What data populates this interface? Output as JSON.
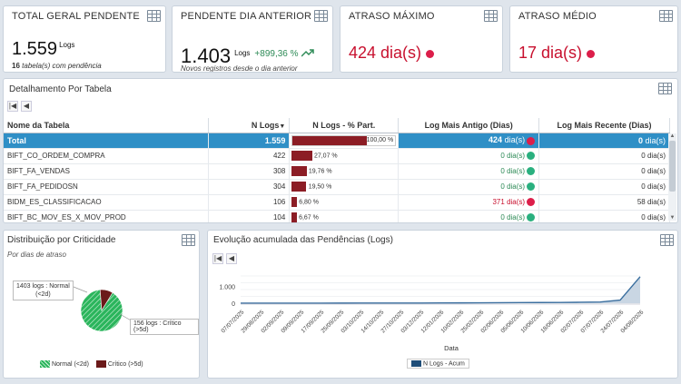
{
  "kpis": {
    "total": {
      "title": "TOTAL GERAL PENDENTE",
      "value": "1.559",
      "unit": "Logs",
      "sub_count": "16",
      "sub_text": "tabela(s) com pendência"
    },
    "prev": {
      "title": "PENDENTE DIA ANTERIOR",
      "value": "1.403",
      "unit": "Logs",
      "delta": "+899,36 %",
      "sub_text": "Novos registros desde o dia anterior"
    },
    "max": {
      "title": "ATRASO MÁXIMO",
      "value": "424 dia(s)"
    },
    "avg": {
      "title": "ATRASO MÉDIO",
      "value": "17 dia(s)"
    }
  },
  "detail": {
    "title": "Detalhamento Por Tabela",
    "columns": [
      "Nome da Tabela",
      "N Logs",
      "N Logs - % Part.",
      "Log Mais Antigo (Dias)",
      "Log Mais Recente (Dias)"
    ],
    "total": {
      "name": "Total",
      "logs": "1.559",
      "pct": "100,00 %",
      "oldest": "424",
      "oldest_unit": "dia(s)",
      "newest": "0",
      "newest_unit": "dia(s)"
    },
    "rows": [
      {
        "name": "BIFT_CO_ORDEM_COMPRA",
        "logs": "422",
        "pct": "27,07 %",
        "pct_val": 27.07,
        "oldest": "0",
        "unit": "dia(s)",
        "oldest_status": "green",
        "newest": "0",
        "newest_unit": "dia(s)"
      },
      {
        "name": "BIFT_FA_VENDAS",
        "logs": "308",
        "pct": "19,76 %",
        "pct_val": 19.76,
        "oldest": "0",
        "unit": "dia(s)",
        "oldest_status": "green",
        "newest": "0",
        "newest_unit": "dia(s)"
      },
      {
        "name": "BIFT_FA_PEDIDOSN",
        "logs": "304",
        "pct": "19,50 %",
        "pct_val": 19.5,
        "oldest": "0",
        "unit": "dia(s)",
        "oldest_status": "green",
        "newest": "0",
        "newest_unit": "dia(s)"
      },
      {
        "name": "BIDM_ES_CLASSIFICACAO",
        "logs": "106",
        "pct": "6,80 %",
        "pct_val": 6.8,
        "oldest": "371",
        "unit": "dia(s)",
        "oldest_status": "red",
        "newest": "58",
        "newest_unit": "dia(s)"
      },
      {
        "name": "BIFT_BC_MOV_ES_X_MOV_PROD",
        "logs": "104",
        "pct": "6,67 %",
        "pct_val": 6.67,
        "oldest": "0",
        "unit": "dia(s)",
        "oldest_status": "green",
        "newest": "0",
        "newest_unit": "dia(s)"
      }
    ]
  },
  "pie": {
    "title": "Distribuição por Criticidade",
    "subtitle": "Por dias de atraso",
    "label_normal_a": "1403 logs : Normal",
    "label_normal_b": "(<2d)",
    "label_critico": "156 logs : Crítico (>5d)",
    "legend_normal": "Normal (<2d)",
    "legend_critico": "Crítico (>5d)",
    "colors": {
      "normal": "#2ab55c",
      "critico": "#6b1a1a"
    }
  },
  "line": {
    "title": "Evolução acumulada das Pendências (Logs)",
    "xlabel": "Data",
    "legend": "N Logs - Acum",
    "y_ticks": [
      "1.000",
      "0"
    ],
    "x_ticks": [
      "07/07/2025",
      "29/08/2025",
      "02/09/2025",
      "09/09/2025",
      "17/09/2025",
      "25/09/2025",
      "03/10/2025",
      "14/10/2025",
      "27/10/2025",
      "03/12/2025",
      "12/01/2026",
      "10/02/2026",
      "25/02/2026",
      "02/06/2026",
      "05/06/2026",
      "10/06/2026",
      "18/06/2026",
      "02/07/2026",
      "07/07/2026",
      "24/07/2026",
      "04/08/2026"
    ],
    "colors": {
      "line": "#3b6f9f",
      "fill": "#c9d6e3",
      "legend_swatch": "#1f4e79"
    }
  },
  "chart_data": [
    {
      "type": "pie",
      "title": "Distribuição por Criticidade",
      "subtitle": "Por dias de atraso",
      "series": [
        {
          "name": "Normal (<2d)",
          "value": 1403
        },
        {
          "name": "Crítico (>5d)",
          "value": 156
        }
      ]
    },
    {
      "type": "area",
      "title": "Evolução acumulada das Pendências (Logs)",
      "xlabel": "Data",
      "ylabel": "",
      "categories": [
        "07/07/2025",
        "29/08/2025",
        "02/09/2025",
        "09/09/2025",
        "17/09/2025",
        "25/09/2025",
        "03/10/2025",
        "14/10/2025",
        "27/10/2025",
        "03/12/2025",
        "12/01/2026",
        "10/02/2026",
        "25/02/2026",
        "02/06/2026",
        "05/06/2026",
        "10/06/2026",
        "18/06/2026",
        "02/07/2026",
        "07/07/2026",
        "24/07/2026",
        "04/08/2026"
      ],
      "series": [
        {
          "name": "N Logs - Acum",
          "values": [
            2,
            3,
            4,
            5,
            6,
            7,
            8,
            9,
            10,
            12,
            15,
            20,
            25,
            30,
            35,
            40,
            45,
            55,
            70,
            180,
            1559
          ]
        }
      ],
      "ylim": [
        0,
        1600
      ],
      "grid": true,
      "legend": "bottom"
    }
  ]
}
